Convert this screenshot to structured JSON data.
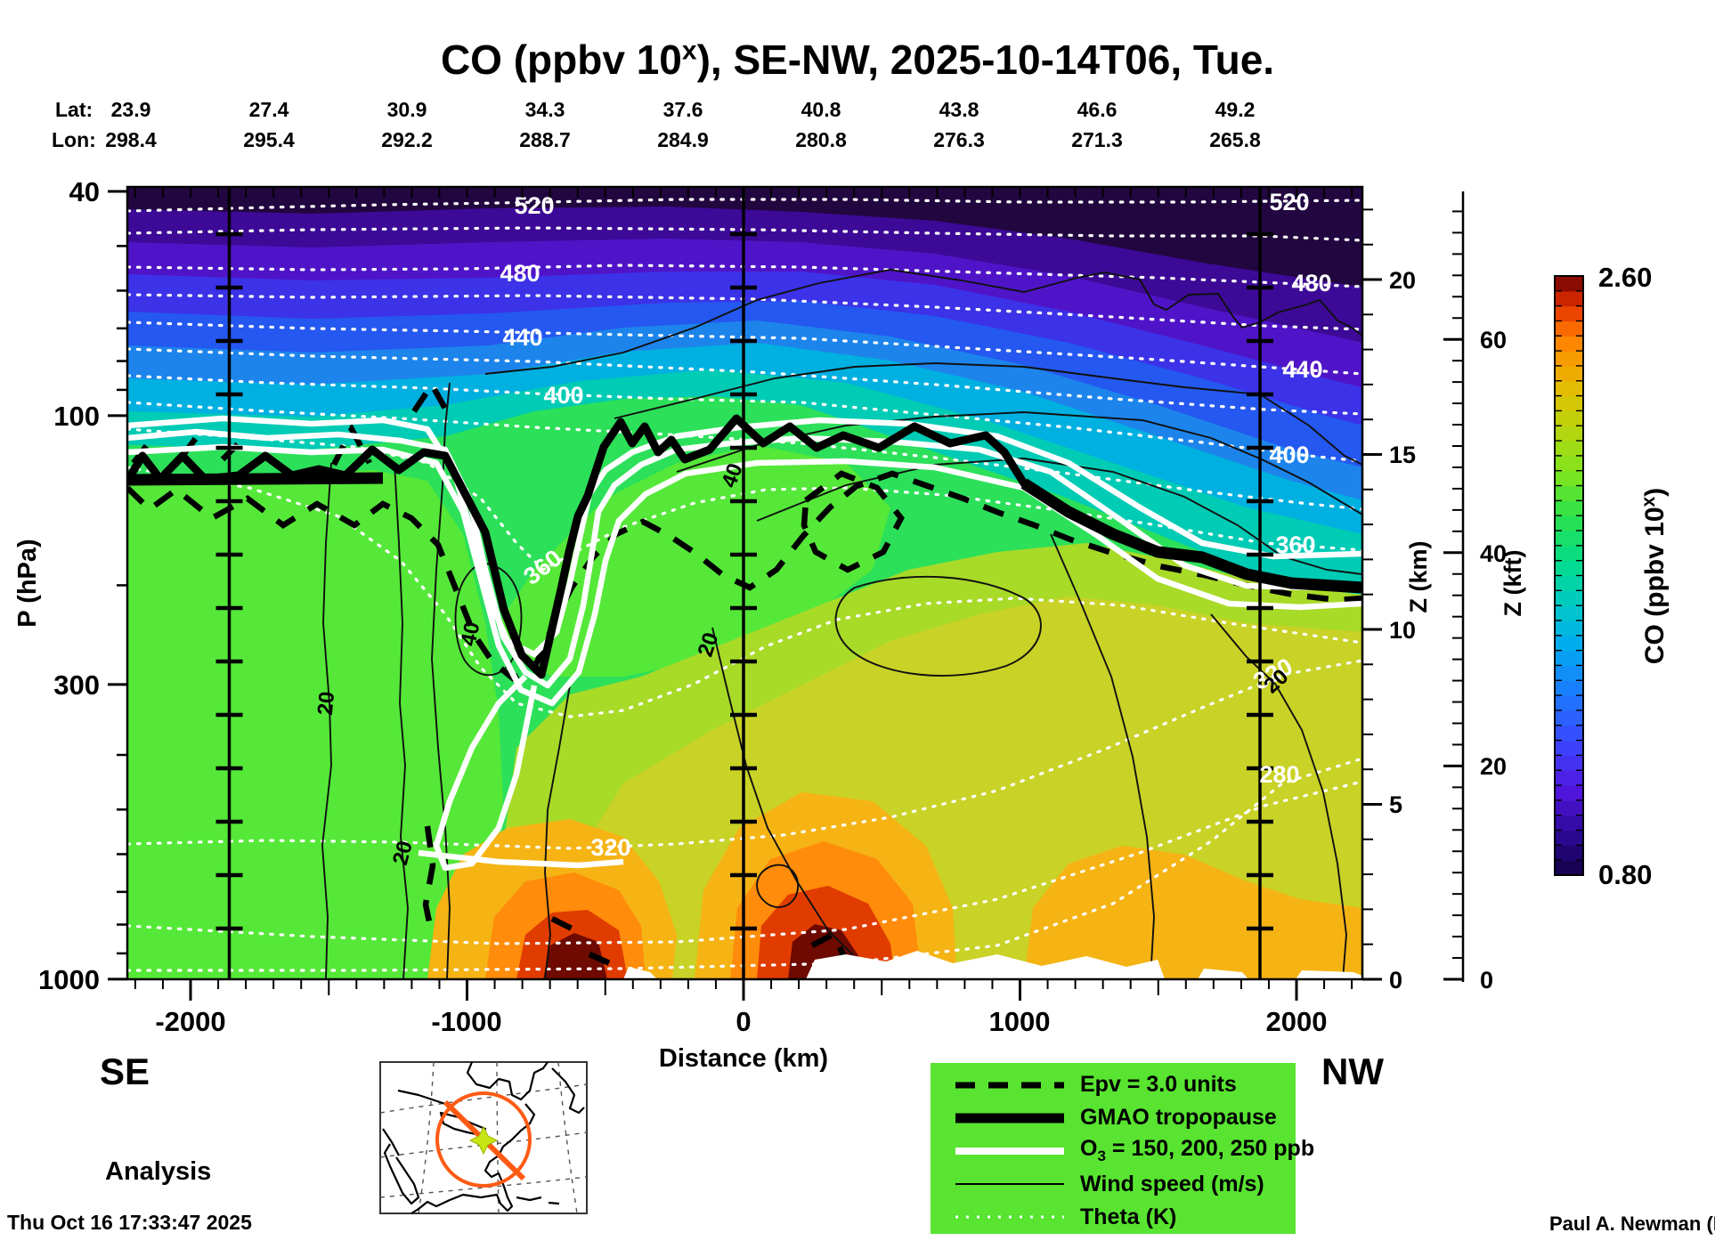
{
  "title": {
    "prefix": "CO (ppbv 10",
    "sup": "x",
    "suffix": "), SE-NW, 2025-10-14T06, Tue."
  },
  "header": {
    "lat_label": "Lat:",
    "lon_label": "Lon:",
    "lat_values": [
      "23.9",
      "27.4",
      "30.9",
      "34.3",
      "37.6",
      "40.8",
      "43.8",
      "46.6",
      "49.2"
    ],
    "lon_values": [
      "298.4",
      "295.4",
      "292.2",
      "288.7",
      "284.9",
      "280.8",
      "276.3",
      "271.3",
      "265.8"
    ]
  },
  "axes": {
    "pressure": {
      "title": "P (hPa)",
      "ticks": [
        "40",
        "100",
        "300",
        "1000"
      ]
    },
    "distance": {
      "title": "Distance (km)",
      "ticks": [
        "-2000",
        "-1000",
        "0",
        "1000",
        "2000"
      ]
    },
    "z_km": {
      "title": "Z (km)",
      "ticks": [
        "0",
        "5",
        "10",
        "15",
        "20"
      ]
    },
    "z_kft": {
      "title": "Z (kft)",
      "ticks": [
        "0",
        "20",
        "40",
        "60"
      ]
    }
  },
  "colorbar": {
    "title_prefix": "CO (ppbv 10",
    "title_sup": "x",
    "title_suffix": ")",
    "max_label": "2.60",
    "min_label": "0.80",
    "segments": 40,
    "stops": [
      [
        0,
        "#140046"
      ],
      [
        0.07,
        "#2b0a96"
      ],
      [
        0.14,
        "#5214dc"
      ],
      [
        0.22,
        "#3c46ff"
      ],
      [
        0.3,
        "#1e78ff"
      ],
      [
        0.38,
        "#00aaf0"
      ],
      [
        0.45,
        "#00c8c8"
      ],
      [
        0.52,
        "#00dc8c"
      ],
      [
        0.6,
        "#2ce24b"
      ],
      [
        0.67,
        "#7de41e"
      ],
      [
        0.74,
        "#b4d70f"
      ],
      [
        0.8,
        "#dcc300"
      ],
      [
        0.85,
        "#f5a500"
      ],
      [
        0.9,
        "#ff7d00"
      ],
      [
        0.95,
        "#e63200"
      ],
      [
        0.98,
        "#a51400"
      ],
      [
        1,
        "#600000"
      ]
    ]
  },
  "contour_labels": {
    "theta": [
      "520",
      "480",
      "440",
      "400",
      "360",
      "320",
      "520",
      "480",
      "440",
      "400",
      "360",
      "320",
      "280"
    ],
    "wind": [
      "40",
      "20",
      "20",
      "40",
      "20",
      "20"
    ]
  },
  "legend": {
    "bg_color": "#58e431",
    "items": [
      {
        "label": "Epv = 3.0 units"
      },
      {
        "label": "GMAO tropopause"
      },
      {
        "label_prefix": "O",
        "label_sub": "3",
        "label_suffix": " = 150, 200, 250 ppb"
      },
      {
        "label": "Wind speed (m/s)"
      },
      {
        "label": "Theta (K)"
      }
    ]
  },
  "annotations": {
    "se": "SE",
    "nw": "NW",
    "analysis": "Analysis",
    "timestamp": "Thu Oct 16 17:33:47 2025",
    "credit": "Paul A. Newman (NASA"
  },
  "colors": {
    "legend_bg": "#58e431",
    "section_path": "#ff5a14",
    "waypoint_star": "#c8e614"
  },
  "chart_data": {
    "type": "heatmap",
    "title": "CO (ppbv 10^x), SE-NW, 2025-10-14T06, Tue.",
    "variable": "CO",
    "units": "ppbv 10^x",
    "valid_time": "2025-10-14T06",
    "weekday": "Tue.",
    "section_orientation": "SE-NW",
    "analysis_type": "Analysis",
    "x_axis": {
      "label": "Distance (km)",
      "range_km": [
        -2240,
        2250
      ],
      "ticks": [
        -2000,
        -1000,
        0,
        1000,
        2000
      ],
      "lat_ticks": [
        23.9,
        27.4,
        30.9,
        34.3,
        37.6,
        40.8,
        43.8,
        46.6,
        49.2
      ],
      "lon_ticks": [
        298.4,
        295.4,
        292.2,
        288.7,
        284.9,
        280.8,
        276.3,
        271.3,
        265.8
      ]
    },
    "y_axis": {
      "label": "P (hPa)",
      "scale": "log",
      "range": [
        1000,
        40
      ],
      "ticks": [
        40,
        100,
        300,
        1000
      ],
      "z_km_ticks": [
        0,
        5,
        10,
        15,
        20
      ],
      "z_kft_ticks": [
        0,
        20,
        40,
        60
      ]
    },
    "colorbar": {
      "label": "CO (ppbv 10^x)",
      "min": 0.8,
      "max": 2.6
    },
    "overlays": [
      {
        "name": "Epv",
        "level": 3.0,
        "units": "units",
        "style": "thick dashed black"
      },
      {
        "name": "GMAO tropopause",
        "style": "thick solid black"
      },
      {
        "name": "O3",
        "levels": [
          150,
          200,
          250
        ],
        "units": "ppb",
        "style": "thick solid white"
      },
      {
        "name": "Wind speed",
        "units": "m/s",
        "labeled_contours": [
          20,
          40
        ],
        "style": "thin solid black"
      },
      {
        "name": "Theta",
        "units": "K",
        "labeled_contours": [
          280,
          320,
          360,
          400,
          440,
          480,
          520
        ],
        "contour_interval": 20,
        "style": "dotted white"
      }
    ],
    "reference_lines_km": [
      -1860,
      0,
      1860
    ],
    "features": [
      "Low stratospheric CO (0.8-1.2) above tropopause, darkest at top-NW",
      "Tropopause fold / dip near -900 km",
      "High near-surface CO plumes (>2.4) around -600 km and +250 km",
      "Tropopause descends from ~100 hPa (SE) to ~250 hPa (NW)"
    ]
  }
}
